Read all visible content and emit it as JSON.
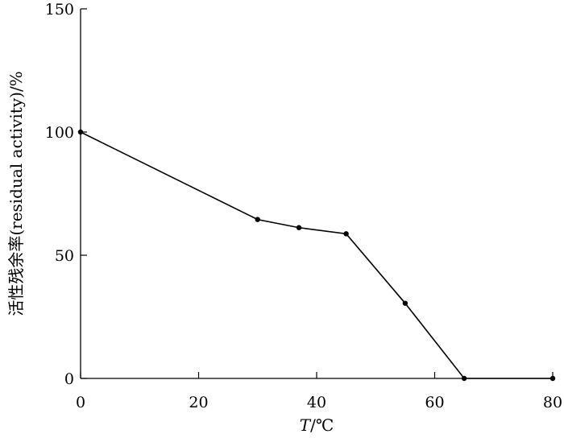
{
  "chart_data": {
    "type": "line",
    "title": "",
    "xlabel": "T/℃",
    "xlabel_var": "T",
    "xlabel_unit": "/℃",
    "ylabel": "活性残余率(residual activity)/%",
    "xlim": [
      0,
      80
    ],
    "ylim": [
      0,
      150
    ],
    "xticks": [
      0,
      20,
      40,
      60,
      80
    ],
    "yticks": [
      0,
      50,
      100,
      150
    ],
    "grid": false,
    "legend": "none",
    "series": [
      {
        "x": [
          0,
          30,
          37,
          45,
          55,
          65,
          80
        ],
        "y": [
          100,
          64.5,
          61.2,
          58.7,
          30.5,
          0,
          0
        ]
      }
    ]
  }
}
